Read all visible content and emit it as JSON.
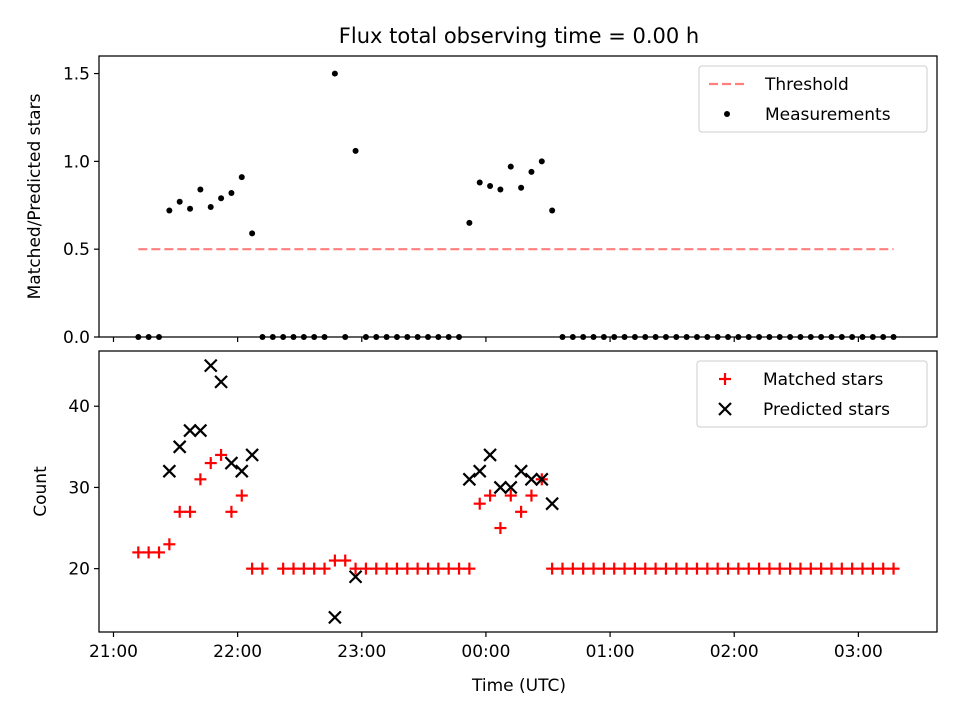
{
  "figure": {
    "title": "Flux total observing time = 0.00 h",
    "xlabel": "Time (UTC)"
  },
  "chart_data": [
    {
      "type": "scatter",
      "title": "Flux total observing time = 0.00 h",
      "xlabel": "",
      "ylabel": "Matched/Predicted stars",
      "xlim": [
        "20:53",
        "03:38"
      ],
      "ylim": [
        0,
        1.6
      ],
      "xtick_labels": [],
      "ytick_labels": [
        "0.0",
        "0.5",
        "1.0",
        "1.5"
      ],
      "ytick_values": [
        0,
        0.5,
        1.0,
        1.5
      ],
      "legend_position": "upper right",
      "series": [
        {
          "name": "Threshold",
          "kind": "line",
          "style": "dashed",
          "color": "#ff7f7f",
          "points": [
            [
              "21:12",
              0.5
            ],
            [
              "03:17",
              0.5
            ]
          ]
        },
        {
          "name": "Measurements",
          "kind": "scatter",
          "marker": "dot",
          "color": "#000000",
          "points": [
            [
              "21:12",
              0.0
            ],
            [
              "21:17",
              0.0
            ],
            [
              "21:22",
              0.0
            ],
            [
              "21:27",
              0.72
            ],
            [
              "21:32",
              0.77
            ],
            [
              "21:37",
              0.73
            ],
            [
              "21:42",
              0.84
            ],
            [
              "21:47",
              0.74
            ],
            [
              "21:52",
              0.79
            ],
            [
              "21:57",
              0.82
            ],
            [
              "22:02",
              0.91
            ],
            [
              "22:07",
              0.59
            ],
            [
              "22:12",
              0.0
            ],
            [
              "22:17",
              0.0
            ],
            [
              "22:22",
              0.0
            ],
            [
              "22:27",
              0.0
            ],
            [
              "22:32",
              0.0
            ],
            [
              "22:37",
              0.0
            ],
            [
              "22:42",
              0.0
            ],
            [
              "22:47",
              1.5
            ],
            [
              "22:52",
              0.0
            ],
            [
              "22:57",
              1.06
            ],
            [
              "23:02",
              0.0
            ],
            [
              "23:07",
              0.0
            ],
            [
              "23:12",
              0.0
            ],
            [
              "23:17",
              0.0
            ],
            [
              "23:22",
              0.0
            ],
            [
              "23:27",
              0.0
            ],
            [
              "23:32",
              0.0
            ],
            [
              "23:37",
              0.0
            ],
            [
              "23:42",
              0.0
            ],
            [
              "23:47",
              0.0
            ],
            [
              "23:52",
              0.65
            ],
            [
              "23:57",
              0.88
            ],
            [
              "00:02",
              0.86
            ],
            [
              "00:07",
              0.84
            ],
            [
              "00:12",
              0.97
            ],
            [
              "00:17",
              0.85
            ],
            [
              "00:22",
              0.94
            ],
            [
              "00:27",
              1.0
            ],
            [
              "00:32",
              0.72
            ],
            [
              "00:37",
              0.0
            ],
            [
              "00:42",
              0.0
            ],
            [
              "00:47",
              0.0
            ],
            [
              "00:52",
              0.0
            ],
            [
              "00:57",
              0.0
            ],
            [
              "01:02",
              0.0
            ],
            [
              "01:07",
              0.0
            ],
            [
              "01:12",
              0.0
            ],
            [
              "01:17",
              0.0
            ],
            [
              "01:22",
              0.0
            ],
            [
              "01:27",
              0.0
            ],
            [
              "01:32",
              0.0
            ],
            [
              "01:37",
              0.0
            ],
            [
              "01:42",
              0.0
            ],
            [
              "01:47",
              0.0
            ],
            [
              "01:52",
              0.0
            ],
            [
              "01:57",
              0.0
            ],
            [
              "02:02",
              0.0
            ],
            [
              "02:07",
              0.0
            ],
            [
              "02:12",
              0.0
            ],
            [
              "02:17",
              0.0
            ],
            [
              "02:22",
              0.0
            ],
            [
              "02:27",
              0.0
            ],
            [
              "02:32",
              0.0
            ],
            [
              "02:37",
              0.0
            ],
            [
              "02:42",
              0.0
            ],
            [
              "02:47",
              0.0
            ],
            [
              "02:52",
              0.0
            ],
            [
              "02:57",
              0.0
            ],
            [
              "03:02",
              0.0
            ],
            [
              "03:07",
              0.0
            ],
            [
              "03:12",
              0.0
            ],
            [
              "03:17",
              0.0
            ]
          ]
        }
      ]
    },
    {
      "type": "scatter",
      "title": "",
      "xlabel": "Time (UTC)",
      "ylabel": "Count",
      "xlim": [
        "20:53",
        "03:38"
      ],
      "ylim": [
        12.2,
        46.8
      ],
      "xtick_labels": [
        "21:00",
        "22:00",
        "23:00",
        "00:00",
        "01:00",
        "02:00",
        "03:00"
      ],
      "xtick_values": [
        "21:00",
        "22:00",
        "23:00",
        "00:00",
        "01:00",
        "02:00",
        "03:00"
      ],
      "ytick_labels": [
        "20",
        "30",
        "40"
      ],
      "ytick_values": [
        20,
        30,
        40
      ],
      "legend_position": "upper right",
      "series": [
        {
          "name": "Matched stars",
          "kind": "scatter",
          "marker": "plus",
          "color": "#ff0000",
          "points": [
            [
              "21:12",
              22
            ],
            [
              "21:17",
              22
            ],
            [
              "21:22",
              22
            ],
            [
              "21:27",
              23
            ],
            [
              "21:32",
              27
            ],
            [
              "21:37",
              27
            ],
            [
              "21:42",
              31
            ],
            [
              "21:47",
              33
            ],
            [
              "21:52",
              34
            ],
            [
              "21:57",
              27
            ],
            [
              "22:02",
              29
            ],
            [
              "22:07",
              20
            ],
            [
              "22:12",
              20
            ],
            [
              "22:22",
              20
            ],
            [
              "22:27",
              20
            ],
            [
              "22:32",
              20
            ],
            [
              "22:37",
              20
            ],
            [
              "22:42",
              20
            ],
            [
              "22:47",
              21
            ],
            [
              "22:52",
              21
            ],
            [
              "22:57",
              20
            ],
            [
              "23:02",
              20
            ],
            [
              "23:07",
              20
            ],
            [
              "23:12",
              20
            ],
            [
              "23:17",
              20
            ],
            [
              "23:22",
              20
            ],
            [
              "23:27",
              20
            ],
            [
              "23:32",
              20
            ],
            [
              "23:37",
              20
            ],
            [
              "23:42",
              20
            ],
            [
              "23:47",
              20
            ],
            [
              "23:52",
              20
            ],
            [
              "23:57",
              28
            ],
            [
              "00:02",
              29
            ],
            [
              "00:07",
              25
            ],
            [
              "00:12",
              29
            ],
            [
              "00:17",
              27
            ],
            [
              "00:22",
              29
            ],
            [
              "00:27",
              31
            ],
            [
              "00:32",
              20
            ],
            [
              "00:37",
              20
            ],
            [
              "00:42",
              20
            ],
            [
              "00:47",
              20
            ],
            [
              "00:52",
              20
            ],
            [
              "00:57",
              20
            ],
            [
              "01:02",
              20
            ],
            [
              "01:07",
              20
            ],
            [
              "01:12",
              20
            ],
            [
              "01:17",
              20
            ],
            [
              "01:22",
              20
            ],
            [
              "01:27",
              20
            ],
            [
              "01:32",
              20
            ],
            [
              "01:37",
              20
            ],
            [
              "01:42",
              20
            ],
            [
              "01:47",
              20
            ],
            [
              "01:52",
              20
            ],
            [
              "01:57",
              20
            ],
            [
              "02:02",
              20
            ],
            [
              "02:07",
              20
            ],
            [
              "02:12",
              20
            ],
            [
              "02:17",
              20
            ],
            [
              "02:22",
              20
            ],
            [
              "02:27",
              20
            ],
            [
              "02:32",
              20
            ],
            [
              "02:37",
              20
            ],
            [
              "02:42",
              20
            ],
            [
              "02:47",
              20
            ],
            [
              "02:52",
              20
            ],
            [
              "02:57",
              20
            ],
            [
              "03:02",
              20
            ],
            [
              "03:07",
              20
            ],
            [
              "03:12",
              20
            ],
            [
              "03:17",
              20
            ]
          ]
        },
        {
          "name": "Predicted stars",
          "kind": "scatter",
          "marker": "x",
          "color": "#000000",
          "points": [
            [
              "21:27",
              32
            ],
            [
              "21:32",
              35
            ],
            [
              "21:37",
              37
            ],
            [
              "21:42",
              37
            ],
            [
              "21:47",
              45
            ],
            [
              "21:52",
              43
            ],
            [
              "21:57",
              33
            ],
            [
              "22:02",
              32
            ],
            [
              "22:07",
              34
            ],
            [
              "22:47",
              14
            ],
            [
              "22:57",
              19
            ],
            [
              "23:52",
              31
            ],
            [
              "23:57",
              32
            ],
            [
              "00:02",
              34
            ],
            [
              "00:07",
              30
            ],
            [
              "00:12",
              30
            ],
            [
              "00:17",
              32
            ],
            [
              "00:22",
              31
            ],
            [
              "00:27",
              31
            ],
            [
              "00:32",
              28
            ]
          ]
        }
      ]
    }
  ]
}
